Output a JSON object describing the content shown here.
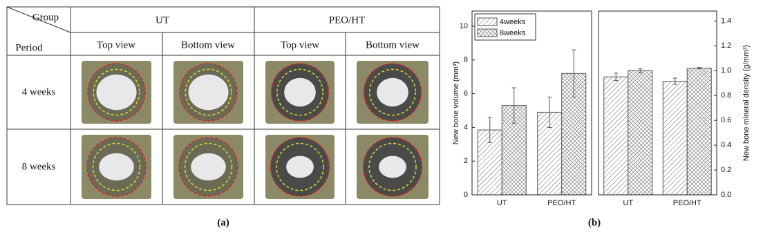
{
  "table": {
    "corner": {
      "group": "Group",
      "period": "Period"
    },
    "groups": [
      "UT",
      "PEO/HT"
    ],
    "views": [
      "Top view",
      "Bottom view",
      "Top view",
      "Bottom view"
    ],
    "rows": [
      "4 weeks",
      "8 weeks"
    ],
    "caption": "(a)"
  },
  "caption": "(b)",
  "chart_data": [
    {
      "type": "bar",
      "y_label": "New bone volume (mm³)",
      "y_axis_side": "left",
      "categories": [
        "UT",
        "PEO/HT"
      ],
      "series": [
        {
          "name": "4weeks",
          "color": "#555555",
          "pattern": "hatch",
          "values": [
            3.85,
            4.9
          ],
          "errors": [
            0.75,
            0.9
          ]
        },
        {
          "name": "8weeks",
          "color": "#555555",
          "pattern": "crosshatch",
          "values": [
            5.3,
            7.2
          ],
          "errors": [
            1.05,
            1.4
          ]
        }
      ],
      "ylim": [
        0,
        10.9
      ],
      "yticks": [
        0,
        2,
        4,
        6,
        8,
        10
      ],
      "legend": "upper left"
    },
    {
      "type": "bar",
      "y_label": "New bone mineral density (g/mm³)",
      "y_axis_side": "right",
      "categories": [
        "UT",
        "PEO/HT"
      ],
      "series": [
        {
          "color": "#555555",
          "pattern": "hatch",
          "values": [
            0.95,
            0.915
          ],
          "errors": [
            0.03,
            0.025
          ]
        },
        {
          "color": "#555555",
          "pattern": "crosshatch",
          "values": [
            1.0,
            1.02
          ],
          "errors": [
            0.015,
            0.005
          ]
        }
      ],
      "ylim": [
        0,
        1.48
      ],
      "yticks": [
        {
          "value": 0,
          "label": "0.0"
        },
        0.2,
        0.4,
        0.6,
        0.8,
        {
          "value": 1,
          "label": "1.0"
        },
        1.2,
        1.4
      ]
    }
  ]
}
